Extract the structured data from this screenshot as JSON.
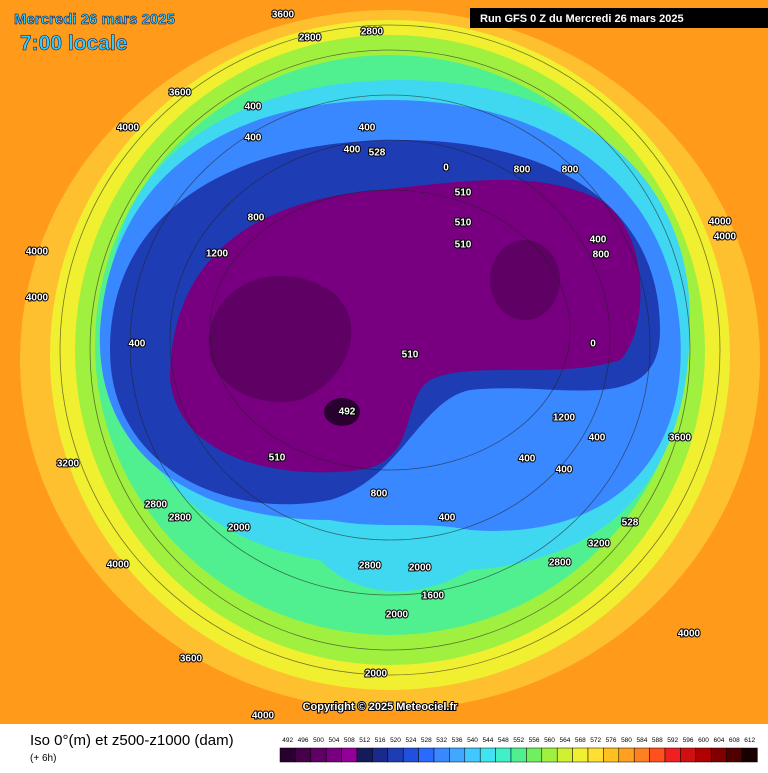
{
  "header": {
    "date": "Mercredi 26 mars 2025",
    "time": "7:00 locale",
    "run": "Run GFS 0 Z du Mercredi 26 mars 2025"
  },
  "copyright": "Copyright © 2025 Meteociel.fr",
  "footer": {
    "title": "Iso 0°(m) et z500-z1000 (dam)",
    "step": "(+ 6h)"
  },
  "scale": {
    "labels": [
      492,
      496,
      500,
      504,
      508,
      512,
      516,
      520,
      524,
      528,
      532,
      536,
      540,
      544,
      548,
      552,
      556,
      560,
      564,
      568,
      572,
      576,
      580,
      584,
      588,
      592,
      596,
      600,
      604,
      608,
      612
    ],
    "colors": [
      "#2a0030",
      "#46004a",
      "#5e0064",
      "#780080",
      "#920098",
      "#141a5a",
      "#1a2a8c",
      "#1e3cb4",
      "#2050dc",
      "#2a6aff",
      "#3a88ff",
      "#40a8ff",
      "#40c8ff",
      "#40e4f0",
      "#40f0c8",
      "#50f090",
      "#70f060",
      "#a0f040",
      "#d0f030",
      "#f0f030",
      "#ffe030",
      "#ffc020",
      "#ffa020",
      "#ff8020",
      "#ff5020",
      "#f02020",
      "#d01010",
      "#b00000",
      "#800000",
      "#500000",
      "#180000"
    ]
  },
  "contour_labels": [
    "3600",
    "2800",
    "2800",
    "3600",
    "4000",
    "400",
    "400",
    "400",
    "400",
    "528",
    "0",
    "800",
    "800",
    "510",
    "510",
    "510",
    "400",
    "800",
    "4000",
    "4000",
    "4000",
    "4000",
    "1200",
    "800",
    "400",
    "510",
    "492",
    "510",
    "0",
    "1200",
    "400",
    "3600",
    "3200",
    "2800",
    "2800",
    "2000",
    "800",
    "400",
    "400",
    "400",
    "528",
    "3200",
    "2800",
    "2000",
    "2800",
    "4000",
    "3600",
    "4000",
    "4000",
    "2000",
    "1600",
    "2000"
  ]
}
